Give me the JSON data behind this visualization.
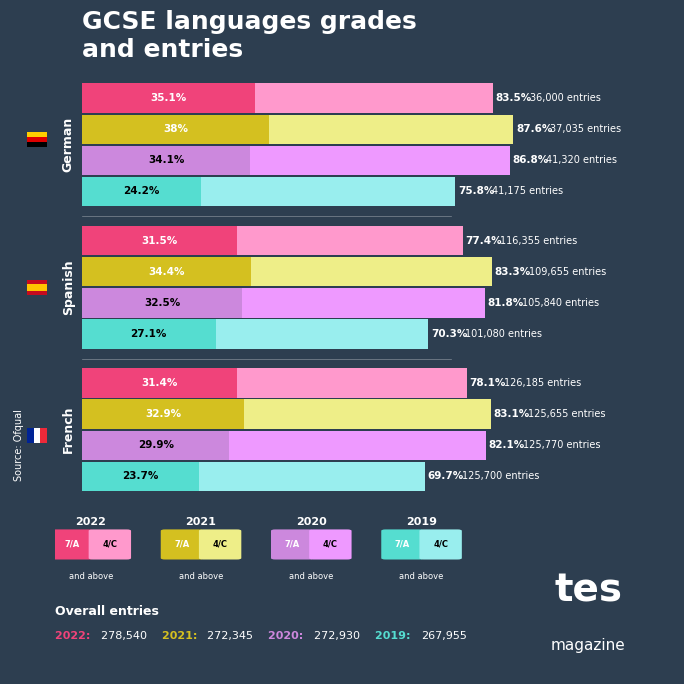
{
  "title": "GCSE languages grades\nand entries",
  "background_color": "#2d3e50",
  "bar_height": 0.18,
  "languages": [
    "German",
    "Spanish",
    "French"
  ],
  "years": [
    "2022",
    "2021",
    "2020",
    "2019"
  ],
  "year_colors_7A": [
    "#f0437a",
    "#d4c020",
    "#cc88dd",
    "#55ddd0"
  ],
  "year_colors_4C": [
    "#ff99cc",
    "#eeee88",
    "#ee99ff",
    "#99eeee"
  ],
  "year_colors_text": [
    "#f0437a",
    "#d4c020",
    "#cc88dd",
    "#55ddd0"
  ],
  "data": {
    "German": {
      "2022": {
        "pct_7A": 35.1,
        "pct_4C": 83.5,
        "entries": "36,000 entries"
      },
      "2021": {
        "pct_7A": 38.0,
        "pct_4C": 87.6,
        "entries": "37,035 entries"
      },
      "2020": {
        "pct_7A": 34.1,
        "pct_4C": 86.8,
        "entries": "41,320 entries"
      },
      "2019": {
        "pct_7A": 24.2,
        "pct_4C": 75.8,
        "entries": "41,175 entries"
      }
    },
    "Spanish": {
      "2022": {
        "pct_7A": 31.5,
        "pct_4C": 77.4,
        "entries": "116,355 entries"
      },
      "2021": {
        "pct_7A": 34.4,
        "pct_4C": 83.3,
        "entries": "109,655 entries"
      },
      "2020": {
        "pct_7A": 32.5,
        "pct_4C": 81.8,
        "entries": "105,840 entries"
      },
      "2019": {
        "pct_7A": 27.1,
        "pct_4C": 70.3,
        "entries": "101,080 entries"
      }
    },
    "French": {
      "2022": {
        "pct_7A": 31.4,
        "pct_4C": 78.1,
        "entries": "126,185 entries"
      },
      "2021": {
        "pct_7A": 32.9,
        "pct_4C": 83.1,
        "entries": "125,655 entries"
      },
      "2020": {
        "pct_7A": 29.9,
        "pct_4C": 82.1,
        "entries": "125,770 entries"
      },
      "2019": {
        "pct_7A": 23.7,
        "pct_4C": 69.7,
        "entries": "125,700 entries"
      }
    }
  },
  "overall_entries": {
    "2022": "278,540",
    "2021": "272,345",
    "2020": "272,930",
    "2019": "267,955"
  },
  "source_text": "Source: Ofqual",
  "tes_text": "tes\nmagazine",
  "legend_label_7A": "7/A",
  "legend_label_4C": "4/C",
  "legend_years": [
    "2022",
    "2021",
    "2020",
    "2019"
  ],
  "x_max": 100
}
